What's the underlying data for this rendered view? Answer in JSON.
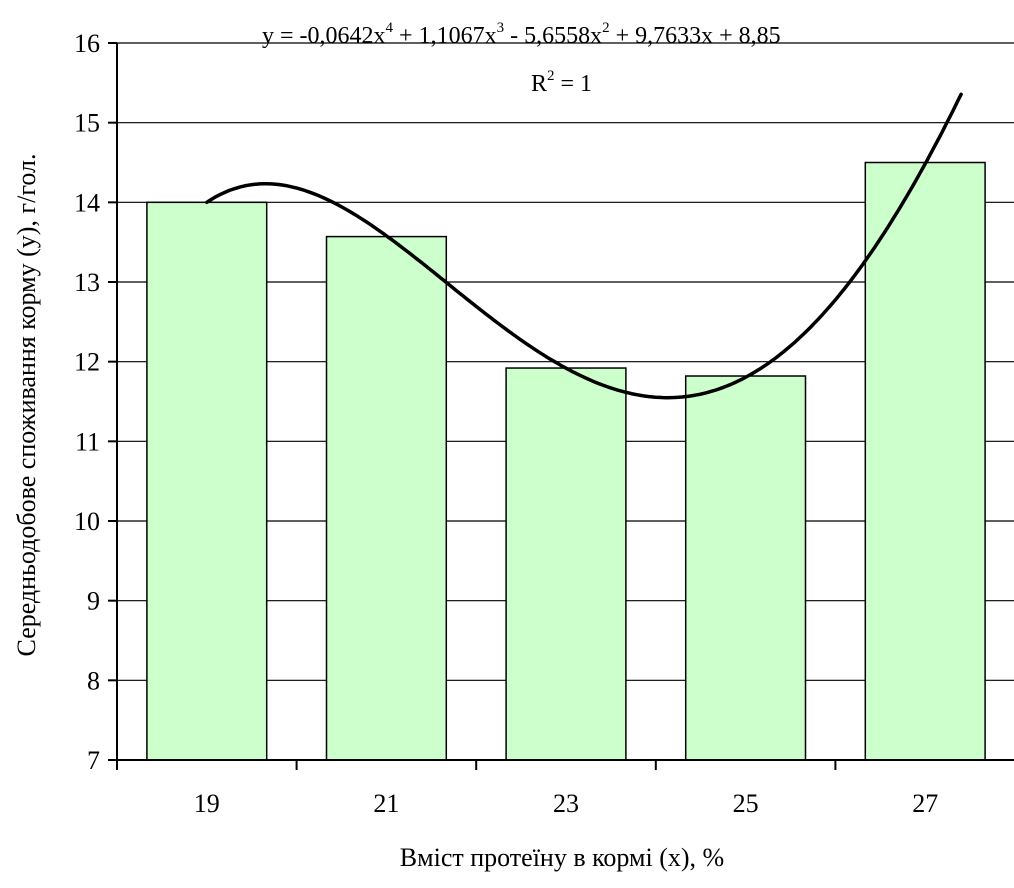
{
  "chart_data": {
    "type": "bar",
    "categories": [
      "19",
      "21",
      "23",
      "25",
      "27"
    ],
    "values": [
      14.0,
      13.57,
      11.92,
      11.82,
      14.5
    ],
    "xlabel": "Вміст протеїну в кормі (x), %",
    "ylabel": "Середньодобове споживання корму (y), г/гол.",
    "ylim": [
      7,
      16
    ],
    "yticks": [
      "7",
      "8",
      "9",
      "10",
      "11",
      "12",
      "13",
      "14",
      "15",
      "16"
    ],
    "grid": true,
    "bar_color": "#ccffcc",
    "bar_stroke": "#000000",
    "trendline": {
      "type": "polynomial",
      "order": 4,
      "coefficients": [
        -0.0642,
        1.1067,
        -5.6558,
        9.7633,
        8.85
      ],
      "equation_parts": {
        "a": "y = -0,0642x",
        "a_exp": "4",
        "b": " + 1,1067x",
        "b_exp": "3",
        "c": " - 5,6558x",
        "c_exp": "2",
        "d": " + 9,7633x + 8,85"
      },
      "r2_parts": {
        "r": "R",
        "r_exp": "2",
        "value": " = 1"
      },
      "color": "#000000"
    }
  }
}
